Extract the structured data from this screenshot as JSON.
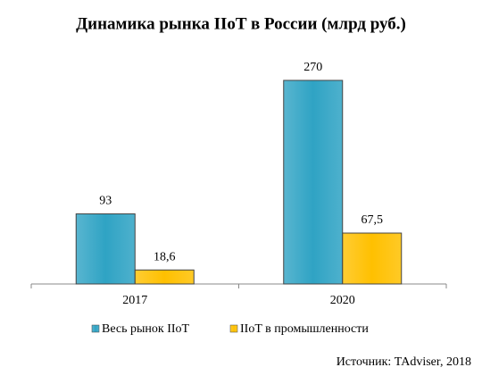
{
  "chart_data": {
    "type": "bar",
    "title": "Динамика рынка IIoT в России (млрд руб.)",
    "categories": [
      "2017",
      "2020"
    ],
    "series": [
      {
        "name": "Весь рынок IIoT",
        "color": "#2fa3c4",
        "values": [
          93,
          270
        ]
      },
      {
        "name": "IIoT в промышленности",
        "color": "#ffc000",
        "values": [
          18.6,
          67.5
        ],
        "value_labels": [
          "18,6",
          "67,5"
        ]
      }
    ],
    "legend": "bottom",
    "source": "Источник: TAdviser, 2018"
  }
}
